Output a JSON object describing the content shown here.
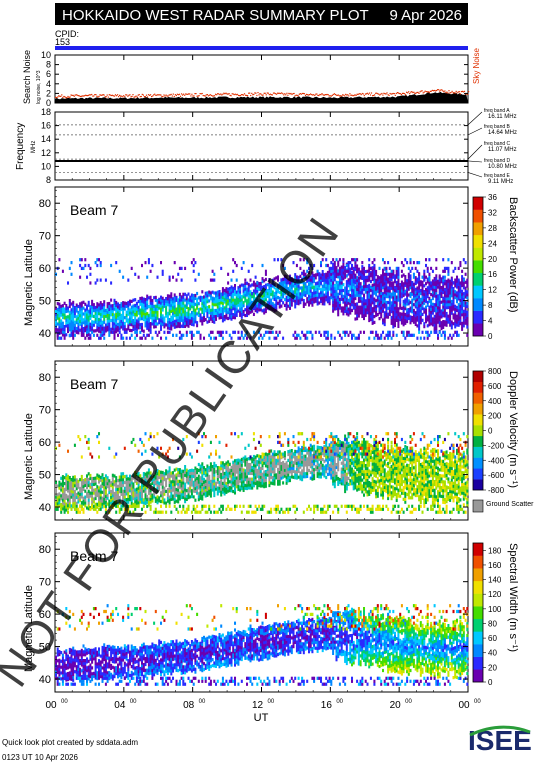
{
  "header": {
    "title": "HOKKAIDO WEST RADAR SUMMARY PLOT",
    "date": "9 Apr 2026",
    "cpid_label": "CPID:",
    "cpid_value": "153"
  },
  "footer": {
    "created": "Quick look plot created by sddata.adm",
    "timestamp": "0123 UT 10 Apr 2026",
    "logo": "ISEE",
    "watermark": "NOT FOR PUBLICATION"
  },
  "colors": {
    "title_bg": "#000000",
    "cpid_bar": "#2020ee",
    "sky_noise": "#e03000",
    "ground_scatter": "#999999"
  },
  "chart_data": [
    {
      "type": "line",
      "ylabel": "Search Noise",
      "ylabel_sub": "log noise, 10^3",
      "ylim": [
        0,
        10
      ],
      "yticks": [
        "0",
        "2",
        "4",
        "6",
        "8",
        "10"
      ],
      "legend": "Sky Noise",
      "x": [
        0,
        2,
        4,
        6,
        8,
        10,
        12,
        14,
        16,
        18,
        20,
        22,
        24
      ],
      "series": [
        {
          "name": "Sky Noise",
          "values": [
            1.5,
            1.6,
            1.6,
            1.7,
            1.8,
            1.9,
            2.0,
            1.9,
            1.8,
            1.9,
            2.0,
            2.7,
            2.2
          ]
        },
        {
          "values": [
            0.9,
            1.0,
            1.0,
            1.1,
            1.1,
            1.2,
            1.2,
            1.2,
            1.1,
            1.2,
            1.3,
            2.2,
            1.8
          ]
        }
      ]
    },
    {
      "type": "line",
      "ylabel": "Frequency",
      "ylabel_sub": "MHz",
      "ylim": [
        8,
        18
      ],
      "yticks": [
        "8",
        "10",
        "12",
        "14",
        "16",
        "18"
      ],
      "frequency_mhz": 10.8,
      "freq_bands": [
        {
          "label": "freq band A",
          "value": "16.11 MHz",
          "mhz": 16.11
        },
        {
          "label": "freq band B",
          "value": "14.64 MHz",
          "mhz": 14.64
        },
        {
          "label": "freq band C",
          "value": "11.07 MHz",
          "mhz": 11.07
        },
        {
          "label": "freq band D",
          "value": "10.80 MHz",
          "mhz": 10.8
        },
        {
          "label": "freq band E",
          "value": "9.11 MHz",
          "mhz": 9.11
        }
      ]
    },
    {
      "type": "heatmap",
      "beam": "Beam  7",
      "ylabel": "Magnetic Latitude",
      "ylim": [
        36,
        85
      ],
      "yticks": [
        "40",
        "50",
        "60",
        "70",
        "80"
      ],
      "colorbar_label": "Backscatter Power (dB)",
      "colorbar_ticks": [
        "0",
        "4",
        "8",
        "12",
        "16",
        "20",
        "24",
        "28",
        "32",
        "36"
      ],
      "colorbar_range": [
        0,
        36
      ],
      "x": [
        0,
        2,
        4,
        6,
        8,
        10,
        12,
        14,
        16,
        18,
        20,
        22,
        24
      ],
      "echo_center_lat": [
        44,
        44.5,
        45,
        46,
        47,
        49,
        51,
        53,
        54,
        52,
        50,
        49,
        49
      ],
      "echo_values": [
        14,
        14,
        15,
        16,
        16,
        15,
        14,
        12,
        10,
        6,
        6,
        6,
        5
      ]
    },
    {
      "type": "heatmap",
      "beam": "Beam  7",
      "ylabel": "Magnetic Latitude",
      "ylim": [
        36,
        85
      ],
      "yticks": [
        "40",
        "50",
        "60",
        "70",
        "80"
      ],
      "colorbar_label": "Doppler Velocity (m s⁻¹)",
      "colorbar_ticks": [
        "800",
        "600",
        "400",
        "200",
        "0",
        "-200",
        "-400",
        "-600",
        "-800"
      ],
      "colorbar_range": [
        -800,
        800
      ],
      "ground_label": "Ground Scatter",
      "x": [
        0,
        2,
        4,
        6,
        8,
        10,
        12,
        14,
        16,
        18,
        20,
        22,
        24
      ],
      "echo_center_lat": [
        44,
        44.5,
        45,
        46,
        47,
        49,
        51,
        53,
        54,
        52,
        50,
        49,
        49
      ],
      "echo_values": [
        -100,
        -100,
        -150,
        -150,
        -200,
        -200,
        -200,
        -250,
        -300,
        -50,
        0,
        0,
        0
      ]
    },
    {
      "type": "heatmap",
      "beam": "Beam  7",
      "ylabel": "Magnetic Latitude",
      "ylim": [
        36,
        85
      ],
      "yticks": [
        "40",
        "50",
        "60",
        "70",
        "80"
      ],
      "colorbar_label": "Spectral Width (m s⁻¹)",
      "colorbar_ticks": [
        "0",
        "20",
        "40",
        "60",
        "80",
        "100",
        "120",
        "140",
        "160",
        "180"
      ],
      "colorbar_range": [
        0,
        190
      ],
      "x": [
        0,
        2,
        4,
        6,
        8,
        10,
        12,
        14,
        16,
        18,
        20,
        22,
        24
      ],
      "echo_center_lat": [
        44,
        44.5,
        45,
        46,
        47,
        49,
        51,
        53,
        54,
        52,
        50,
        49,
        49
      ],
      "echo_values": [
        20,
        20,
        25,
        30,
        30,
        30,
        25,
        25,
        30,
        60,
        80,
        80,
        70
      ]
    }
  ],
  "xaxis": {
    "label": "UT",
    "ticks": [
      {
        "hh": "00",
        "mm": "00"
      },
      {
        "hh": "04",
        "mm": "00"
      },
      {
        "hh": "08",
        "mm": "00"
      },
      {
        "hh": "12",
        "mm": "00"
      },
      {
        "hh": "16",
        "mm": "00"
      },
      {
        "hh": "20",
        "mm": "00"
      },
      {
        "hh": "00",
        "mm": "00"
      }
    ]
  }
}
